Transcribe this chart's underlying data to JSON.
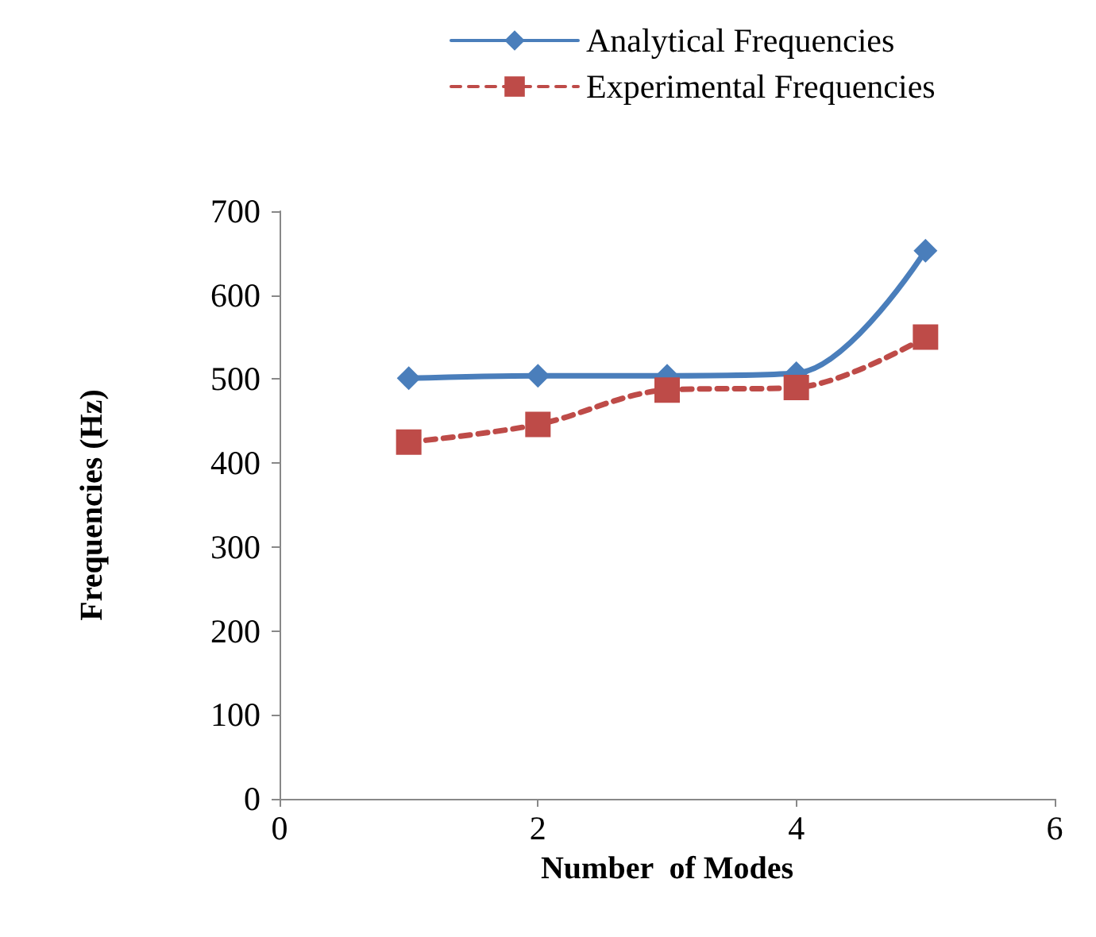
{
  "chart_data": {
    "type": "line",
    "xlabel": "Number  of Modes",
    "ylabel": "Frequencies (Hz)",
    "x": [
      1,
      2,
      3,
      4,
      5
    ],
    "series": [
      {
        "name": "Analytical Frequencies",
        "color": "#4a7ebb",
        "values": [
          501,
          504,
          504,
          507,
          653
        ],
        "marker": "diamond",
        "line_style": "solid"
      },
      {
        "name": "Experimental Frequencies",
        "color": "#be4b48",
        "values": [
          425,
          446,
          487,
          490,
          550
        ],
        "marker": "square",
        "line_style": "dashed"
      }
    ],
    "xlim": [
      0,
      6
    ],
    "xticks": [
      0,
      2,
      4,
      6
    ],
    "ylim": [
      0,
      700
    ],
    "yticks": [
      0,
      100,
      200,
      300,
      400,
      500,
      600,
      700
    ],
    "grid": false,
    "legend": "top"
  }
}
